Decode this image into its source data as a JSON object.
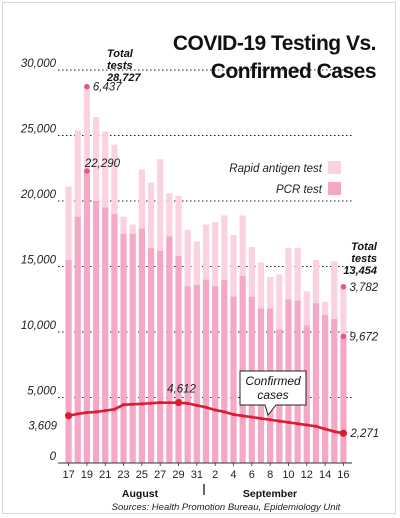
{
  "chart_data": {
    "type": "bar",
    "title_lines": [
      "COVID-19 Testing Vs.",
      "Confirmed Cases"
    ],
    "ylim": [
      0,
      30000
    ],
    "y_ticks": [
      0,
      5000,
      10000,
      15000,
      20000,
      25000,
      30000
    ],
    "y_tick_labels": [
      "0",
      "5,000",
      "10,000",
      "15,000",
      "20,000",
      "25,000",
      "30,000"
    ],
    "x_tick_labels": [
      "17",
      "19",
      "21",
      "23",
      "25",
      "27",
      "29",
      "31",
      "2",
      "4",
      "6",
      "8",
      "10",
      "12",
      "14",
      "16"
    ],
    "months": [
      "August",
      "September"
    ],
    "legend": [
      "Rapid antigen test",
      "PCR  test"
    ],
    "colors": {
      "pcr": "#f5a8c6",
      "antigen": "#fad2e2",
      "cases": "#d81e33",
      "marker": "#e05a8a",
      "grid": "#222222"
    },
    "dates": [
      "17",
      "18",
      "19",
      "20",
      "21",
      "22",
      "23",
      "24",
      "25",
      "26",
      "27",
      "28",
      "29",
      "30",
      "31",
      "1",
      "2",
      "3",
      "4",
      "5",
      "6",
      "7",
      "8",
      "9",
      "10",
      "11",
      "12",
      "13",
      "14",
      "15",
      "16"
    ],
    "series": [
      {
        "name": "PCR  test",
        "values": [
          15500,
          18800,
          22290,
          20000,
          19500,
          19000,
          17500,
          17500,
          17900,
          16400,
          16200,
          17300,
          15800,
          13500,
          13600,
          14000,
          13500,
          14000,
          12700,
          14300,
          12700,
          11800,
          11800,
          10200,
          12500,
          12400,
          10500,
          12200,
          11300,
          11000,
          9672
        ]
      },
      {
        "name": "Rapid antigen test",
        "values": [
          5600,
          6600,
          6437,
          6400,
          5800,
          5300,
          1300,
          700,
          4500,
          5000,
          7000,
          3300,
          4600,
          4300,
          3300,
          4200,
          4900,
          4900,
          4700,
          4600,
          3800,
          3500,
          2400,
          4200,
          3900,
          4000,
          2600,
          3300,
          1000,
          4400,
          3782
        ]
      },
      {
        "name": "Confirmed cases",
        "values": [
          3609,
          3750,
          3850,
          3900,
          4000,
          4100,
          4450,
          4480,
          4520,
          4560,
          4612,
          4600,
          4612,
          4550,
          4400,
          4250,
          4050,
          3900,
          3700,
          3600,
          3500,
          3400,
          3300,
          3200,
          3100,
          3000,
          2900,
          2800,
          2600,
          2400,
          2271
        ]
      }
    ],
    "annotations": {
      "total_first_label": "Total\ntests",
      "total_first_value": "28,727",
      "total_last_label": "Total\ntests",
      "total_last_value": "13,454",
      "antigen_peak": "6,437",
      "pcr_peak": "22,290",
      "last_antigen": "3,782",
      "last_pcr": "9,672",
      "cases_start": "3,609",
      "cases_peak": "4,612",
      "cases_end": "2,271",
      "cases_callout": "Confirmed\ncases"
    },
    "source": "Sources: Health Promotion Bureau, Epidemiology Unit"
  }
}
